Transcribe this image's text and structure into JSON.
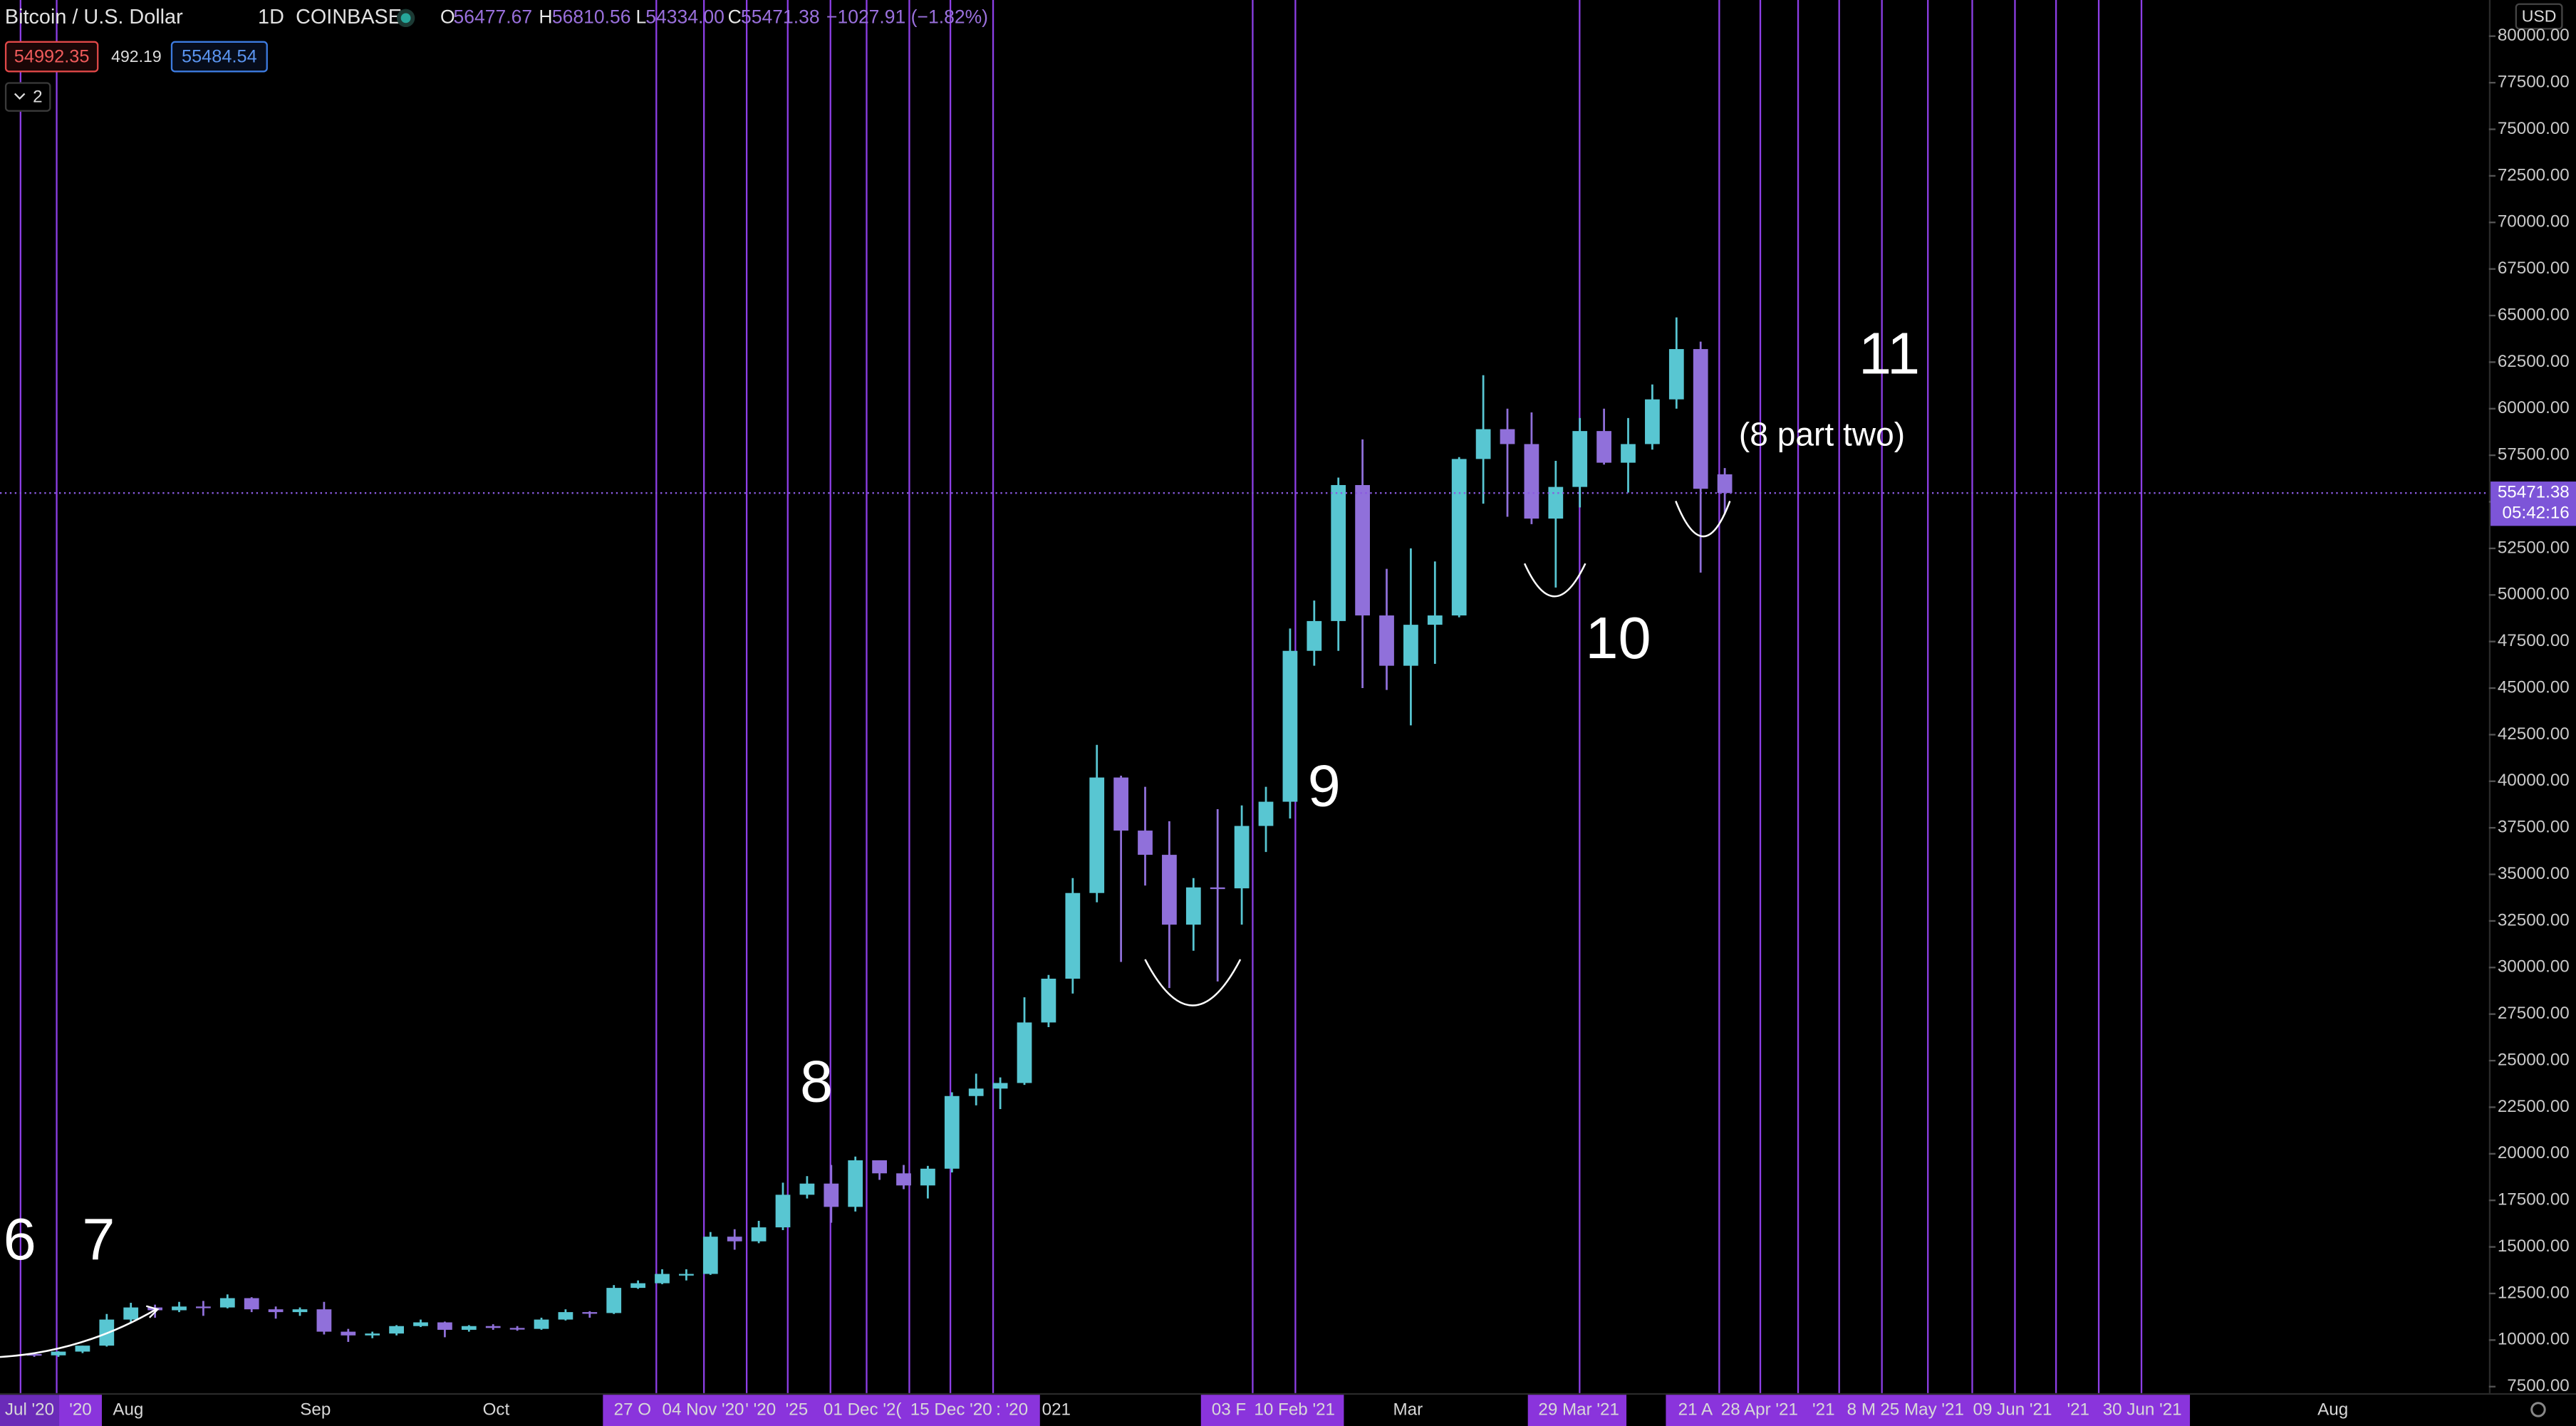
{
  "header": {
    "symbol": "Bitcoin / U.S. Dollar",
    "interval": "1D",
    "exchange": "COINBASE",
    "o_label": "O",
    "o": "56477.67",
    "h_label": "H",
    "h": "56810.56",
    "l_label": "L",
    "l": "54334.00",
    "c_label": "C",
    "c": "55471.38",
    "change": "−1027.91 (−1.82%)"
  },
  "order_panel": {
    "sell": "54992.35",
    "spread": "492.19",
    "buy": "55484.54"
  },
  "indicator_toggle": "2",
  "currency": "USD",
  "chart_data": {
    "type": "candlestick",
    "x": [
      "2020-07-15",
      "2020-07-19",
      "2020-07-23",
      "2020-07-27",
      "2020-07-31",
      "2020-08-04",
      "2020-08-08",
      "2020-08-12",
      "2020-08-16",
      "2020-08-20",
      "2020-08-24",
      "2020-08-28",
      "2020-09-01",
      "2020-09-05",
      "2020-09-09",
      "2020-09-13",
      "2020-09-17",
      "2020-09-21",
      "2020-09-25",
      "2020-09-29",
      "2020-10-03",
      "2020-10-07",
      "2020-10-11",
      "2020-10-15",
      "2020-10-19",
      "2020-10-23",
      "2020-10-27",
      "2020-10-31",
      "2020-11-04",
      "2020-11-08",
      "2020-11-12",
      "2020-11-16",
      "2020-11-20",
      "2020-11-24",
      "2020-11-28",
      "2020-12-02",
      "2020-12-06",
      "2020-12-10",
      "2020-12-14",
      "2020-12-18",
      "2020-12-22",
      "2020-12-26",
      "2020-12-30",
      "2021-01-03",
      "2021-01-07",
      "2021-01-11",
      "2021-01-15",
      "2021-01-19",
      "2021-01-23",
      "2021-01-27",
      "2021-01-31",
      "2021-02-04",
      "2021-02-08",
      "2021-02-12",
      "2021-02-16",
      "2021-02-20",
      "2021-02-24",
      "2021-02-28",
      "2021-03-04",
      "2021-03-08",
      "2021-03-12",
      "2021-03-16",
      "2021-03-20",
      "2021-03-24",
      "2021-03-28",
      "2021-04-01",
      "2021-04-05",
      "2021-04-09",
      "2021-04-13",
      "2021-04-17",
      "2021-04-21"
    ],
    "open": [
      9250,
      9180,
      9380,
      9700,
      11100,
      11750,
      11600,
      11800,
      11750,
      12250,
      11650,
      11500,
      11650,
      10450,
      10250,
      10350,
      10750,
      10950,
      10550,
      10750,
      10650,
      10600,
      11100,
      11500,
      11450,
      12800,
      13050,
      13550,
      13550,
      15550,
      15300,
      16050,
      17800,
      18400,
      17150,
      19650,
      18950,
      18300,
      19200,
      23100,
      23500,
      23800,
      27050,
      29400,
      34000,
      40200,
      37350,
      36050,
      32300,
      34300,
      34250,
      37600,
      38900,
      47000,
      48600,
      55900,
      48900,
      46200,
      48400,
      48900,
      57300,
      58900,
      58100,
      54100,
      55800,
      58800,
      57100,
      58100,
      60500,
      63200,
      56477.67
    ],
    "high": [
      9300,
      9400,
      9700,
      11400,
      12000,
      11900,
      12050,
      12100,
      12450,
      12300,
      11800,
      11750,
      12050,
      10600,
      10450,
      10800,
      11100,
      10990,
      10800,
      10850,
      10750,
      11200,
      11650,
      11550,
      12950,
      13200,
      13800,
      13800,
      15800,
      15950,
      16400,
      18450,
      18800,
      19400,
      19850,
      19650,
      19400,
      19350,
      23300,
      24300,
      24100,
      28400,
      29600,
      34800,
      41950,
      40300,
      39700,
      37850,
      34800,
      38500,
      38700,
      39700,
      48200,
      49700,
      56300,
      58350,
      51400,
      52500,
      51800,
      57400,
      61800,
      60000,
      59800,
      57200,
      59500,
      60000,
      59500,
      61300,
      64900,
      63600,
      56810.56
    ],
    "low": [
      9100,
      9100,
      9300,
      9650,
      10950,
      11200,
      11500,
      11300,
      11700,
      11500,
      11150,
      11300,
      10300,
      9900,
      10100,
      10250,
      10700,
      10150,
      10450,
      10550,
      10500,
      10550,
      11050,
      11200,
      11400,
      12750,
      13000,
      13200,
      13500,
      14850,
      15200,
      15900,
      17600,
      16300,
      16900,
      18600,
      18100,
      17600,
      19000,
      22600,
      22400,
      23700,
      26800,
      28600,
      33500,
      30300,
      34400,
      28900,
      30900,
      29250,
      32300,
      36200,
      38000,
      46200,
      47000,
      45000,
      44900,
      43000,
      46300,
      48800,
      54900,
      54200,
      53800,
      50400,
      54700,
      57000,
      55500,
      57800,
      60000,
      51200,
      54334
    ],
    "close": [
      9180,
      9380,
      9700,
      11100,
      11750,
      11600,
      11800,
      11750,
      12250,
      11650,
      11500,
      11650,
      10450,
      10250,
      10350,
      10750,
      10950,
      10550,
      10750,
      10650,
      10600,
      11100,
      11500,
      11450,
      12800,
      13050,
      13550,
      13550,
      15550,
      15300,
      16050,
      17800,
      18400,
      17150,
      19650,
      18950,
      18300,
      19200,
      23100,
      23500,
      23800,
      27050,
      29400,
      34000,
      40200,
      37350,
      36050,
      32300,
      34300,
      34250,
      37600,
      38900,
      47000,
      48600,
      55900,
      48900,
      46200,
      48400,
      48900,
      57300,
      58900,
      58100,
      54100,
      55800,
      58800,
      57100,
      58100,
      60500,
      63200,
      55700,
      55471.38
    ],
    "up_color": "#58c6d2",
    "down_color": "#9070da",
    "ylim": [
      7150,
      81940
    ],
    "yticks": [
      {
        "value": 7500,
        "label": "7500.00"
      },
      {
        "value": 10000,
        "label": "10000.00"
      },
      {
        "value": 12500,
        "label": "12500.00"
      },
      {
        "value": 15000,
        "label": "15000.00"
      },
      {
        "value": 17500,
        "label": "17500.00"
      },
      {
        "value": 20000,
        "label": "20000.00"
      },
      {
        "value": 22500,
        "label": "22500.00"
      },
      {
        "value": 25000,
        "label": "25000.00"
      },
      {
        "value": 27500,
        "label": "27500.00"
      },
      {
        "value": 30000,
        "label": "30000.00"
      },
      {
        "value": 32500,
        "label": "32500.00"
      },
      {
        "value": 35000,
        "label": "35000.00"
      },
      {
        "value": 37500,
        "label": "37500.00"
      },
      {
        "value": 40000,
        "label": "40000.00"
      },
      {
        "value": 42500,
        "label": "42500.00"
      },
      {
        "value": 45000,
        "label": "45000.00"
      },
      {
        "value": 47500,
        "label": "47500.00"
      },
      {
        "value": 50000,
        "label": "50000.00"
      },
      {
        "value": 52500,
        "label": "52500.00"
      },
      {
        "value": 55000,
        "label": "55000.00"
      },
      {
        "value": 57500,
        "label": "57500.00"
      },
      {
        "value": 60000,
        "label": "60000.00"
      },
      {
        "value": 62500,
        "label": "62500.00"
      },
      {
        "value": 65000,
        "label": "65000.00"
      },
      {
        "value": 67500,
        "label": "67500.00"
      },
      {
        "value": 70000,
        "label": "70000.00"
      },
      {
        "value": 72500,
        "label": "72500.00"
      },
      {
        "value": 75000,
        "label": "75000.00"
      },
      {
        "value": 77500,
        "label": "77500.00"
      },
      {
        "value": 80000,
        "label": "80000.00"
      }
    ],
    "grid": false,
    "last_price_label": "55471.38",
    "countdown": "05:42:16",
    "x_labels": [
      "Jul '20",
      "'20",
      "Aug",
      "Sep",
      "Oct",
      "27 O",
      "04 Nov '20",
      "' '20",
      "'25",
      "01 Dec '2(",
      "15 Dec '20",
      ": '20",
      "021",
      "03 F",
      "10 Feb '21",
      "Mar",
      "29 Mar '21",
      "21 A",
      "28 Apr '21",
      "'21",
      "8 M",
      "25 May '21",
      "09 Jun '21",
      "'21",
      "30 Jun '21",
      "Aug"
    ],
    "annotations": [
      "6",
      "7",
      "8",
      "9",
      "10",
      "11",
      "(8 part two)"
    ]
  }
}
